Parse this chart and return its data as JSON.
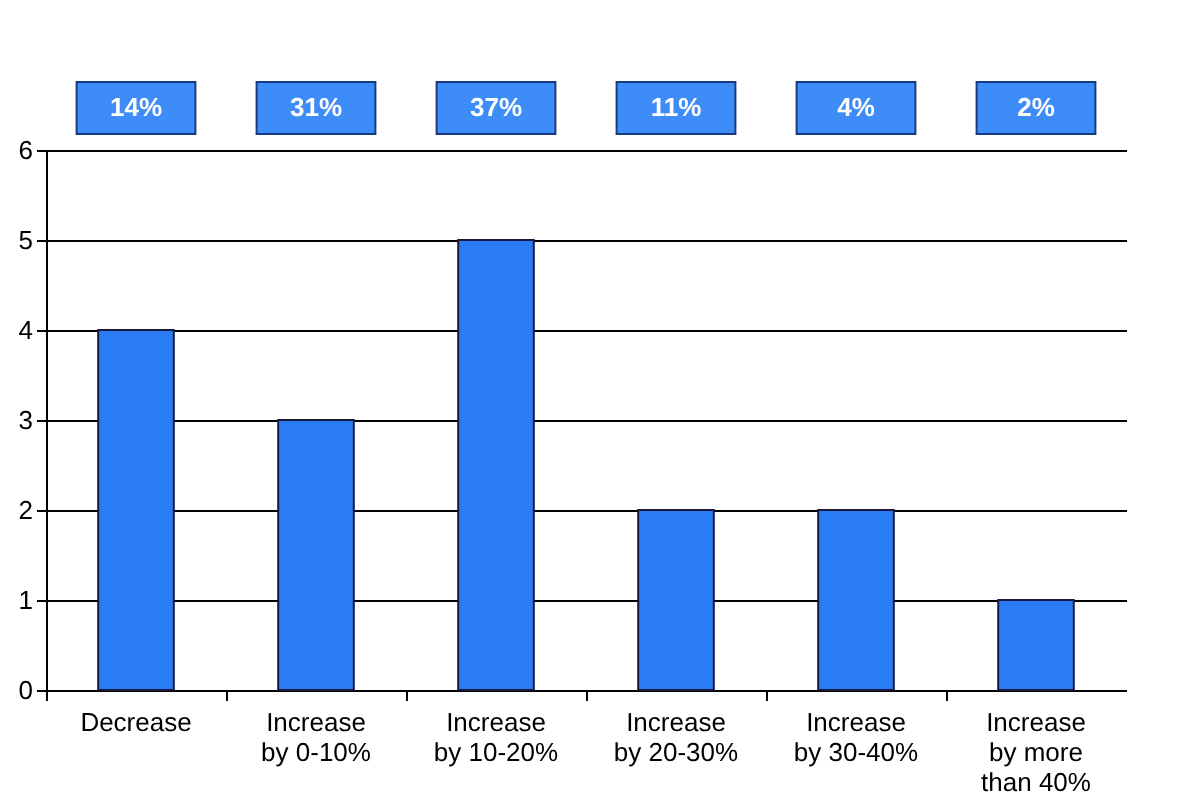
{
  "chart_data": {
    "type": "bar",
    "categories": [
      "Decrease",
      "Increase by 0-10%",
      "Increase by 10-20%",
      "Increase by 20-30%",
      "Increase by 30-40%",
      "Increase by more than 40%"
    ],
    "values": [
      4,
      3,
      5,
      2,
      2,
      1
    ],
    "color": "#2a7cf5",
    "ylim": [
      0,
      6
    ],
    "yticks": [
      0,
      1,
      2,
      3,
      4,
      5,
      6
    ],
    "grid": "y",
    "annotations": [
      "14%",
      "31%",
      "37%",
      "11%",
      "4%",
      "2%"
    ]
  }
}
